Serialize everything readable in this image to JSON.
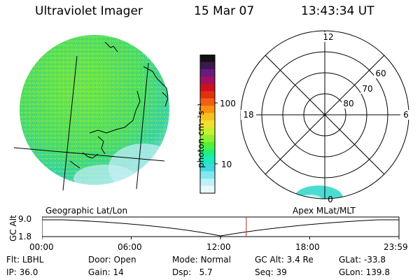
{
  "header": {
    "title": "Ultraviolet Imager",
    "date": "15 Mar 07",
    "time": "13:43:34 UT"
  },
  "left_panel": {
    "caption": "Geographic Lat/Lon"
  },
  "colorbar": {
    "unit_label": "photon cm⁻²s⁻¹",
    "tick_labels": [
      "100",
      "10"
    ],
    "colors": [
      "#111111",
      "#3a1850",
      "#6a1a7a",
      "#a01060",
      "#cc1020",
      "#e03010",
      "#f06010",
      "#f89010",
      "#f8c020",
      "#f0e030",
      "#c8f030",
      "#90f030",
      "#50f040",
      "#20f080",
      "#20e8c0",
      "#40d8e0",
      "#80e8f0",
      "#c0f0f8",
      "#e8f8fc"
    ]
  },
  "right_panel": {
    "caption": "Apex MLat/MLT",
    "mlt_labels": {
      "top": "12",
      "left": "18",
      "right": "6",
      "bottom": "0"
    },
    "mlat_labels": [
      "60",
      "70",
      "80"
    ]
  },
  "gc_plot": {
    "axis_label": "GC Alt",
    "y_ticks": [
      "9.0",
      "1.8"
    ],
    "x_ticks": [
      "00:00",
      "06:00",
      "12:00",
      "18:00",
      "23:59"
    ],
    "current_time_hours": 13.73,
    "cursor_color": "#cc2020"
  },
  "status": {
    "flt_label": "Flt:",
    "flt_value": "LBHL",
    "ip_label": "IP:",
    "ip_value": "36.0",
    "door_label": "Door:",
    "door_value": "Open",
    "gain_label": "Gain:",
    "gain_value": "14",
    "mode_label": "Mode:",
    "mode_value": "Normal",
    "dsp_label": "Dsp:",
    "dsp_value": "5.7",
    "gcalt_label": "GC Alt:",
    "gcalt_value": "3.4 Re",
    "seq_label": "Seq:",
    "seq_value": "39",
    "glat_label": "GLat:",
    "glat_value": "-33.8",
    "glon_label": "GLon:",
    "glon_value": "139.8"
  }
}
